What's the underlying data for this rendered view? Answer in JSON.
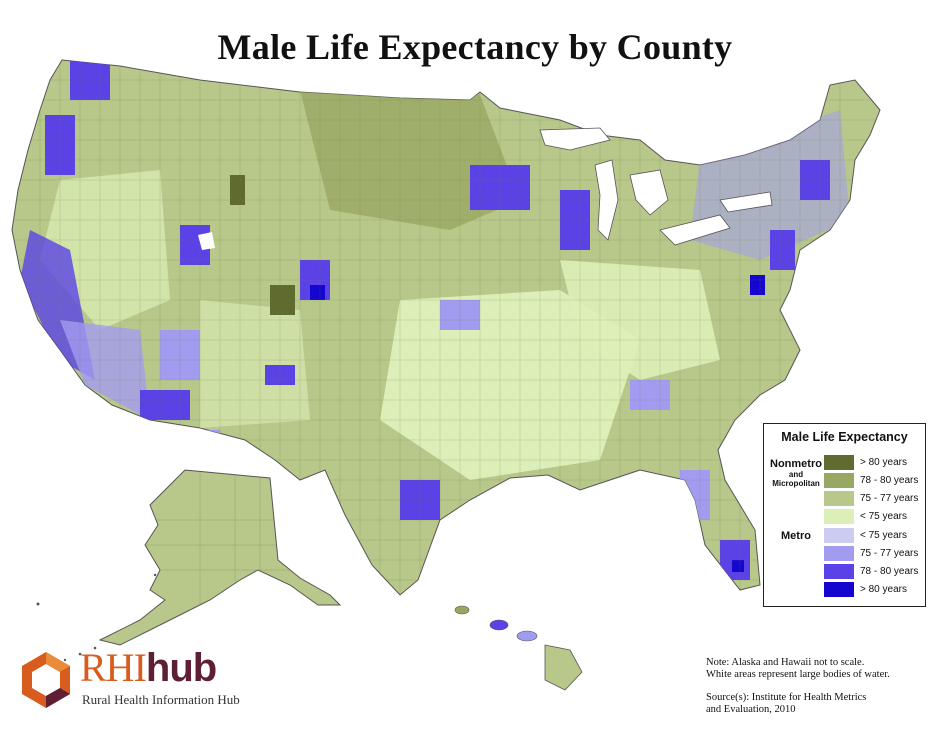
{
  "title": "Male Life Expectancy by County",
  "legend": {
    "title": "Male Life Expectancy",
    "nonmetro_label": "Nonmetro",
    "and_label": "and",
    "micropolitan_label": "Micropolitan",
    "metro_label": "Metro",
    "items": [
      {
        "group": "nonmetro",
        "label": "> 80 years",
        "color": "#5f6b2f"
      },
      {
        "group": "nonmetro",
        "label": "78 - 80 years",
        "color": "#98a862"
      },
      {
        "group": "nonmetro",
        "label": "75 - 77 years",
        "color": "#b7c88a"
      },
      {
        "group": "nonmetro",
        "label": "< 75 years",
        "color": "#dcefb8"
      },
      {
        "group": "metro",
        "label": "< 75 years",
        "color": "#ccccf2"
      },
      {
        "group": "metro",
        "label": "75 - 77 years",
        "color": "#a29cf0"
      },
      {
        "group": "metro",
        "label": "78 - 80 years",
        "color": "#5a42e6"
      },
      {
        "group": "metro",
        "label": "> 80 years",
        "color": "#1405cf"
      }
    ]
  },
  "logo": {
    "rhi": "RHI",
    "hub": "hub",
    "subtitle": "Rural Health Information Hub",
    "orange": "#d85c1e",
    "maroon": "#5e1e34"
  },
  "notes": {
    "line1": "Note: Alaska and Hawaii not to scale.",
    "line2": "White areas represent large bodies of water.",
    "source1": "Source(s): Institute for Health Metrics",
    "source2": "and Evaluation, 2010"
  }
}
